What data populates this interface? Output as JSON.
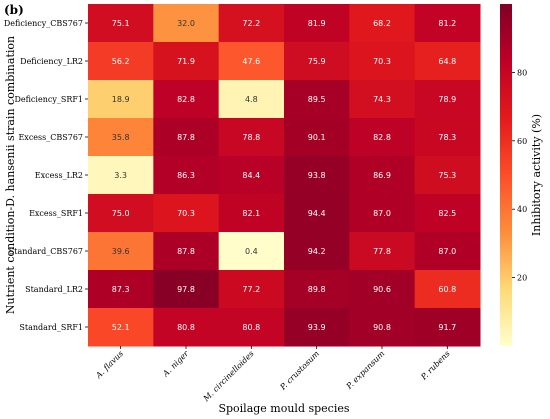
{
  "panel_label": "(b)",
  "chart_data": {
    "type": "heatmap",
    "xlabel": "Spoilage mould species",
    "ylabel": "Nutrient condition-D. hansenii strain combination",
    "colorbar_label": "Inhibitory activity (%)",
    "colorbar_ticks": [
      20,
      40,
      60,
      80
    ],
    "color_range": [
      0,
      100
    ],
    "colormap": [
      "#ffffcc",
      "#fed976",
      "#fd8d3c",
      "#fc4e2a",
      "#e31a1c",
      "#bd0026",
      "#800026"
    ],
    "columns": [
      "A. flavus",
      "A. niger",
      "M. circinelloides",
      "P. crustosum",
      "P. expansum",
      "P. rubens"
    ],
    "rows": [
      "Deficiency_CBS767",
      "Deficiency_LR2",
      "Deficiency_SRF1",
      "Excess_CBS767",
      "Excess_LR2",
      "Excess_SRF1",
      "Standard_CBS767",
      "Standard_LR2",
      "Standard_SRF1"
    ],
    "values": [
      [
        75.1,
        32.0,
        72.2,
        81.9,
        68.2,
        81.2
      ],
      [
        56.2,
        71.9,
        47.6,
        75.9,
        70.3,
        64.8
      ],
      [
        18.9,
        82.8,
        4.8,
        89.5,
        74.3,
        78.9
      ],
      [
        35.8,
        87.8,
        78.8,
        90.1,
        82.8,
        78.3
      ],
      [
        3.3,
        86.3,
        84.4,
        93.8,
        86.9,
        75.3
      ],
      [
        75.0,
        70.3,
        82.1,
        94.4,
        87.0,
        82.5
      ],
      [
        39.6,
        87.8,
        0.4,
        94.2,
        77.8,
        87.0
      ],
      [
        87.3,
        97.8,
        77.2,
        89.8,
        90.6,
        60.8
      ],
      [
        52.1,
        80.8,
        80.8,
        93.9,
        90.8,
        91.7
      ]
    ]
  }
}
